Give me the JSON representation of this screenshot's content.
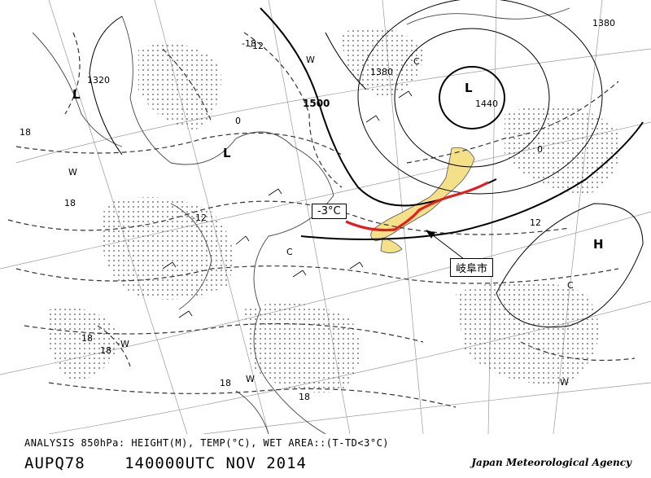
{
  "map": {
    "isobar_labels": [
      "1500",
      "1380",
      "1380",
      "1440",
      "1320"
    ],
    "isotherm_labels": [
      "-12",
      "0",
      "0",
      "12",
      "-12"
    ],
    "pressure_centers": [
      {
        "kind": "low",
        "label": "L"
      },
      {
        "kind": "low",
        "label": "L"
      },
      {
        "kind": "low",
        "label": "L"
      },
      {
        "kind": "high",
        "label": "H"
      }
    ],
    "thermal_labels": [
      "W",
      "W",
      "W",
      "W",
      "W",
      "C",
      "C",
      "C"
    ],
    "temperature_band_labels": [
      "18",
      "18",
      "18",
      "18",
      "18",
      "18",
      "-18"
    ],
    "callouts": {
      "temperature": "-3°C",
      "city": "岐阜市"
    },
    "colors": {
      "line": "#000000",
      "dashed": "#333333",
      "wet_area_dots": "#555555",
      "japan_land_highlight": "#f5e08a",
      "highlight_line": "#e41e1e"
    }
  },
  "footer": {
    "analysis_text": "ANALYSIS 850hPa: HEIGHT(M), TEMP(°C), WET AREA::(T-TD<3°C)",
    "product_code": "AUPQ78",
    "valid_time": "140000UTC NOV 2014",
    "agency": "Japan Meteorological Agency"
  }
}
